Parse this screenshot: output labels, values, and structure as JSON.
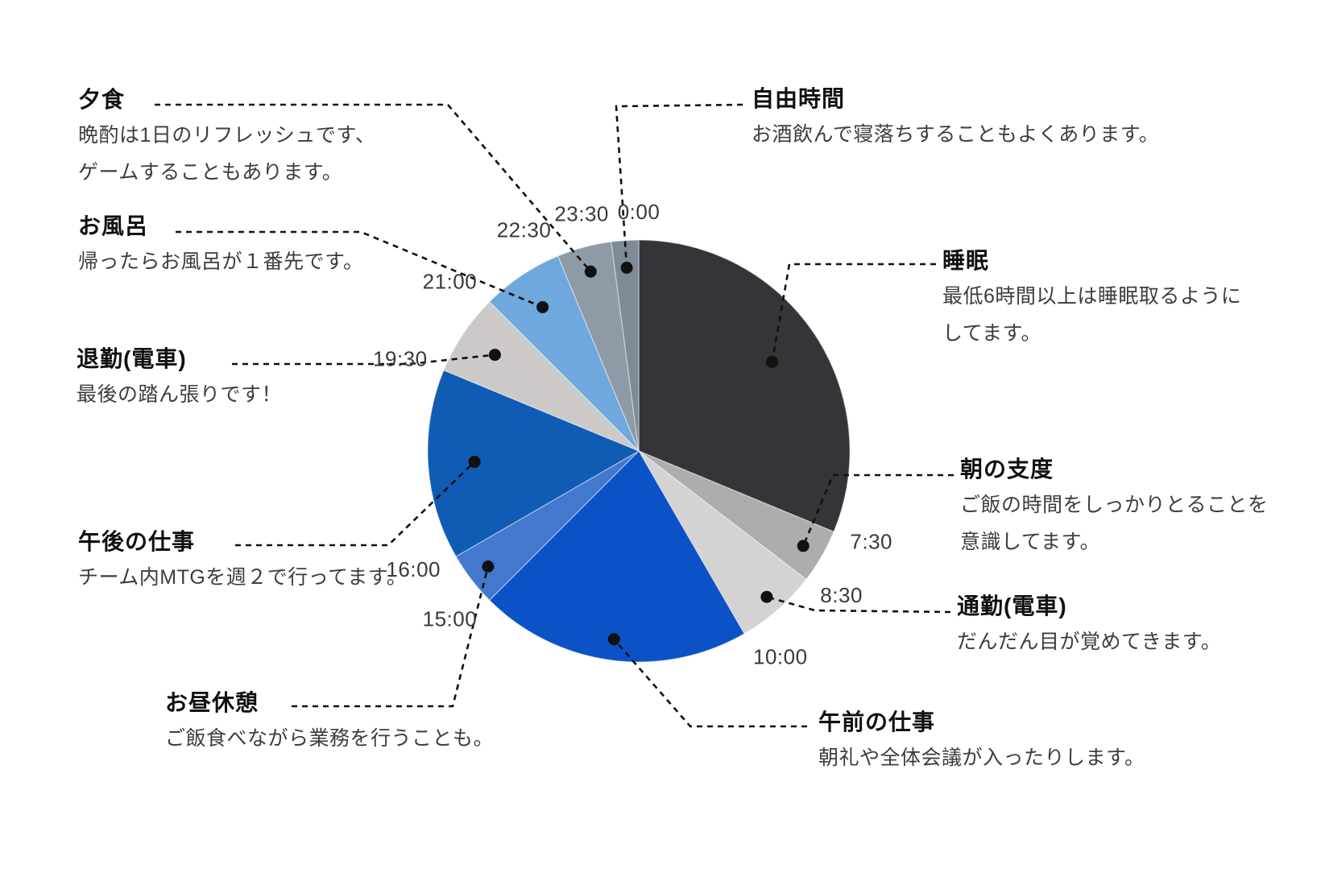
{
  "chart_data": {
    "type": "pie",
    "title": "",
    "clock_format": "24h",
    "clock_start_top": "0:00",
    "direction": "clockwise",
    "legend_position": "callout-annotations-around-pie",
    "tick_labels": [
      "0:00",
      "7:30",
      "8:30",
      "10:00",
      "15:00",
      "16:00",
      "19:30",
      "21:00",
      "22:30",
      "23:30"
    ],
    "segments": [
      {
        "id": "sleep",
        "label": "睡眠",
        "start": "0:00",
        "end": "7:30",
        "hours": 7.5,
        "color": "#333538",
        "description": [
          "最低6時間以上は睡眠取るように",
          "してます。"
        ]
      },
      {
        "id": "morning-prep",
        "label": "朝の支度",
        "start": "7:30",
        "end": "8:30",
        "hours": 1.0,
        "color": "#ADADAD",
        "description": [
          "ご飯の時間をしっかりとることを",
          "意識してます。"
        ]
      },
      {
        "id": "commute-train",
        "label": "通勤(電車)",
        "start": "8:30",
        "end": "10:00",
        "hours": 1.5,
        "color": "#D4D2D2",
        "description": [
          "だんだん目が覚めてきます。"
        ]
      },
      {
        "id": "morning-work",
        "label": "午前の仕事",
        "start": "10:00",
        "end": "15:00",
        "hours": 5.0,
        "color": "#0B52C6",
        "description": [
          "朝礼や全体会議が入ったりします。"
        ]
      },
      {
        "id": "lunch-break",
        "label": "お昼休憩",
        "start": "15:00",
        "end": "16:00",
        "hours": 1.0,
        "color": "#4279CE",
        "description": [
          "ご飯食べながら業務を行うことも。"
        ]
      },
      {
        "id": "afternoon-work",
        "label": "午後の仕事",
        "start": "16:00",
        "end": "19:30",
        "hours": 3.5,
        "color": "#105CB4",
        "description": [
          "チーム内MTGを週２で行ってます。"
        ]
      },
      {
        "id": "commute-home",
        "label": "退勤(電車)",
        "start": "19:30",
        "end": "21:00",
        "hours": 1.5,
        "color": "#CDC9C9",
        "description": [
          "最後の踏ん張りです！"
        ]
      },
      {
        "id": "bath",
        "label": "お風呂",
        "start": "21:00",
        "end": "22:30",
        "hours": 1.5,
        "color": "#6FA8DC",
        "description": [
          "帰ったらお風呂が１番先です。"
        ]
      },
      {
        "id": "dinner",
        "label": "夕食",
        "start": "22:30",
        "end": "23:30",
        "hours": 1.0,
        "color": "#8F9AA7",
        "description": [
          "晩酌は1日のリフレッシュです、",
          "ゲームすることもあります。"
        ]
      },
      {
        "id": "free-time",
        "label": "自由時間",
        "start": "23:30",
        "end": "0:00",
        "hours": 0.5,
        "color": "#7F8A97",
        "description": [
          "お酒飲んで寝落ちすることもよくあります。"
        ]
      }
    ],
    "colors": {
      "background": "#ffffff",
      "leader_line": "#111111",
      "tick_text": "#3a3a3a",
      "title_text": "#101010",
      "description_text": "#3d3d3d"
    }
  }
}
